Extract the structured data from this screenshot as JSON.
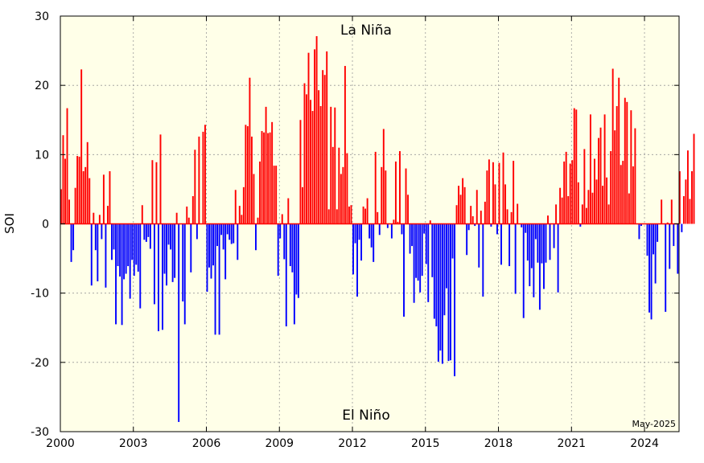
{
  "chart_data": {
    "type": "bar",
    "ylabel": "SOI",
    "ylim": [
      -30,
      30
    ],
    "xlim": [
      2000,
      2025.42
    ],
    "x_ticks": [
      "2000",
      "2003",
      "2006",
      "2009",
      "2012",
      "2015",
      "2018",
      "2021",
      "2024"
    ],
    "y_ticks": [
      "30",
      "20",
      "10",
      "0",
      "-10",
      "-20",
      "-30"
    ],
    "annotations": {
      "top": "La Niña",
      "bottom": "El Niño",
      "date_stamp": "May-2025"
    },
    "grid": true,
    "colors": {
      "positive": "#ff0000",
      "negative": "#0000ff",
      "background": "#ffffe8",
      "grid": "#999999"
    },
    "start": "2000-01",
    "values": [
      5,
      12.8,
      9.4,
      16.7,
      3.5,
      -5.5,
      -3.8,
      5.2,
      9.8,
      9.7,
      22.3,
      7.6,
      8.2,
      11.8,
      6.6,
      -8.9,
      1.6,
      -3.8,
      -8.3,
      1.3,
      -2.2,
      7.1,
      -9.2,
      2.6,
      7.6,
      -5.2,
      -3.7,
      -14.5,
      -6.1,
      -7.6,
      -14.6,
      -8,
      -7.2,
      -6.1,
      -10.8,
      -5.2,
      -7.5,
      -5.9,
      -6.9,
      -12.2,
      2.7,
      -2.3,
      -2.6,
      -1.9,
      -3.6,
      9.2,
      -11.6,
      8.9,
      -15.5,
      12.9,
      -15.3,
      -7.2,
      -8.9,
      -3,
      -3.7,
      -8.4,
      -7.8,
      1.6,
      -28.6,
      0,
      -11.2,
      -14.5,
      2.5,
      0.9,
      -7,
      4,
      10.7,
      -2.2,
      12.6,
      0,
      13.3,
      14.3,
      -9.8,
      -6.3,
      -7.9,
      -6,
      -16,
      -3.2,
      -16,
      -1.6,
      -3.7,
      -8,
      -1.5,
      -2.3,
      -2.9,
      -2.8,
      4.9,
      -5.2,
      2.6,
      1.3,
      5.3,
      14.3,
      14.1,
      21.1,
      12.6,
      7.2,
      -3.8,
      0.9,
      9,
      13.4,
      13.2,
      16.9,
      13.1,
      13.2,
      14.7,
      8.4,
      8.4,
      -7.5,
      -2.1,
      1.4,
      -5.1,
      -14.8,
      3.7,
      -6.1,
      -7,
      -14.5,
      -10.2,
      -10.7,
      15,
      5.3,
      20.3,
      18.7,
      24.7,
      17.9,
      16.3,
      25.2,
      27.1,
      19.3,
      17,
      22.2,
      21.5,
      24.9,
      2.1,
      16.9,
      11.1,
      16.8,
      2.1,
      11,
      7.2,
      8.2,
      22.8,
      10.2,
      2.5,
      2.7,
      -7.3,
      -2.8,
      -10.5,
      -2.3,
      -5.3,
      2.5,
      2.2,
      3.7,
      -2.1,
      -3.4,
      -5.5,
      10.4,
      1.7,
      -1.6,
      8.2,
      13.7,
      7.7,
      -0.6,
      0,
      -2.1,
      0.6,
      9,
      0.3,
      10.5,
      -1.5,
      -13.4,
      8,
      4.2,
      -4.3,
      -3.2,
      -11.4,
      -7.8,
      -8.2,
      -9.9,
      -7.5,
      -1.4,
      -5.8,
      -11.3,
      0.5,
      -7.7,
      -13.7,
      -14.8,
      -19.9,
      -18.3,
      -20.2,
      -13.2,
      -9.3,
      -19.8,
      -19.7,
      -5,
      -22,
      2.7,
      5.5,
      4.2,
      6.6,
      5.3,
      -4.5,
      -0.9,
      2.6,
      1.1,
      -0.3,
      4.9,
      -6.3,
      1.9,
      -10.5,
      3.2,
      7.7,
      9.3,
      -0.4,
      8.9,
      5.7,
      -1.5,
      8.8,
      -5.9,
      10.3,
      5.7,
      2.1,
      -6.1,
      1.7,
      9.1,
      -10.1,
      2.9,
      0,
      -0.5,
      -13.6,
      -1.3,
      -5.3,
      -9,
      -6.4,
      -10.6,
      -2.2,
      -5.6,
      -12.4,
      -5.7,
      -9.4,
      -5.6,
      1.2,
      -5.2,
      0,
      -3.5,
      2.8,
      -9.9,
      5.2,
      3.8,
      9,
      10.4,
      4,
      8.7,
      9.2,
      16.7,
      16.5,
      6,
      -0.4,
      2.8,
      10.8,
      2.3,
      4.9,
      15.8,
      4.5,
      9.4,
      6.4,
      12.4,
      13.9,
      5.5,
      15.8,
      6.7,
      2.8,
      10.5,
      22.4,
      13.5,
      17,
      21.1,
      8.5,
      9.1,
      18.2,
      17.6,
      4.4,
      16.4,
      8.3,
      13.8,
      0,
      -2.2,
      -0.3,
      0,
      0,
      -4.6,
      -12.8,
      -13.8,
      -4.4,
      -8.6,
      -2.6,
      0,
      3.5,
      0,
      -12.7,
      0.2,
      -6.5,
      3.5,
      -3.2,
      0,
      -7.2,
      7.6,
      -1.2,
      4,
      6.4,
      10.6,
      3.6,
      7.6,
      13
    ]
  }
}
